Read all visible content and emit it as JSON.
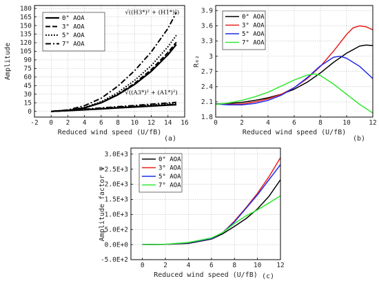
{
  "chart_data": [
    {
      "type": "line",
      "tag": "(a)",
      "xlabel": "Reduced wind speed (U/fB)",
      "ylabel": "Amplitude",
      "xlim": [
        -2,
        16
      ],
      "ylim": [
        -10,
        185
      ],
      "xticks": [
        -2,
        0,
        2,
        4,
        6,
        8,
        10,
        12,
        14,
        16
      ],
      "yticks": [
        0,
        15,
        30,
        45,
        60,
        75,
        90,
        105,
        120,
        135,
        150,
        165,
        180
      ],
      "grid": true,
      "legend_position": "top-left",
      "annotations": [
        {
          "text": "√((H3*)² + (H1*)²)",
          "at_data": [
            12.1,
            170
          ]
        },
        {
          "text": "√((A3*)² + (A1*)²)",
          "at_data": [
            12.0,
            30
          ]
        }
      ],
      "series": [
        {
          "name": "0° AOA",
          "style": "solid",
          "width": 2.2,
          "x": [
            0,
            2,
            4,
            6,
            8,
            10,
            12,
            14,
            15
          ],
          "y": [
            0,
            1.5,
            6,
            15,
            29,
            47,
            70,
            99,
            117
          ]
        },
        {
          "name": "3° AOA",
          "style": "dashed",
          "width": 2,
          "x": [
            0,
            2,
            4,
            6,
            8,
            10,
            12,
            14,
            15
          ],
          "y": [
            0,
            1.6,
            6.4,
            15.5,
            30,
            49,
            73,
            103,
            121
          ]
        },
        {
          "name": "5° AOA",
          "style": "dotted",
          "width": 2,
          "x": [
            0,
            2,
            4,
            6,
            8,
            10,
            12,
            14,
            15
          ],
          "y": [
            0,
            1.7,
            7,
            17,
            33,
            54,
            80,
            113,
            133
          ]
        },
        {
          "name": "7° AOA",
          "style": "dashdot",
          "width": 2,
          "x": [
            0,
            2,
            4,
            6,
            8,
            10,
            12,
            14,
            15
          ],
          "y": [
            0,
            2.5,
            10,
            23,
            44,
            71,
            104,
            145,
            173
          ]
        },
        {
          "name": "",
          "style": "solid",
          "width": 2.2,
          "x": [
            0,
            2,
            4,
            6,
            8,
            10,
            12,
            14,
            15
          ],
          "y": [
            0,
            1.3,
            2.8,
            4.3,
            6,
            7.6,
            9.2,
            10.8,
            11.5
          ]
        },
        {
          "name": "",
          "style": "dashed",
          "width": 2,
          "x": [
            0,
            2,
            4,
            6,
            8,
            10,
            12,
            14,
            15
          ],
          "y": [
            0,
            1.4,
            3,
            4.6,
            6.3,
            8,
            9.8,
            11.5,
            12.3
          ]
        },
        {
          "name": "",
          "style": "dotted",
          "width": 2,
          "x": [
            0,
            2,
            4,
            6,
            8,
            10,
            12,
            14,
            15
          ],
          "y": [
            0,
            1.6,
            3.5,
            5.4,
            7.4,
            9.4,
            11.4,
            13.2,
            14.2
          ]
        },
        {
          "name": "",
          "style": "dashdot",
          "width": 2,
          "x": [
            0,
            2,
            4,
            6,
            8,
            10,
            12,
            14,
            15
          ],
          "y": [
            0,
            1.7,
            3.8,
            6,
            8.2,
            10.4,
            12.6,
            14.7,
            15.7
          ]
        }
      ]
    },
    {
      "type": "line",
      "tag": "(b)",
      "xlabel": "Reduced wind speed (U/fB)",
      "ylabel": "R₀₂",
      "xlim": [
        0,
        12
      ],
      "ylim": [
        1.8,
        4.0
      ],
      "xticks": [
        0,
        2,
        4,
        6,
        8,
        10,
        12
      ],
      "yticks": [
        1.8,
        2.1,
        2.4,
        2.7,
        3.0,
        3.3,
        3.6,
        3.9
      ],
      "grid": true,
      "legend_position": "top-left",
      "series": [
        {
          "name": "0° AOA",
          "color": "#000000",
          "x": [
            0,
            1,
            2,
            3,
            4,
            5,
            6,
            7,
            8,
            9,
            10,
            11,
            11.5,
            12
          ],
          "y": [
            2.06,
            2.07,
            2.09,
            2.13,
            2.18,
            2.25,
            2.35,
            2.49,
            2.67,
            2.88,
            3.06,
            3.2,
            3.22,
            3.21
          ]
        },
        {
          "name": "3° AOA",
          "color": "#e81e1e",
          "x": [
            0,
            1,
            2,
            3,
            4,
            5,
            6,
            7,
            8,
            9,
            10,
            10.5,
            11,
            11.5,
            12
          ],
          "y": [
            2.06,
            2.05,
            2.06,
            2.1,
            2.16,
            2.25,
            2.38,
            2.56,
            2.8,
            3.1,
            3.43,
            3.56,
            3.6,
            3.58,
            3.52
          ]
        },
        {
          "name": "5° AOA",
          "color": "#1f2ae8",
          "x": [
            0,
            1,
            2,
            3,
            4,
            5,
            6,
            7,
            8,
            9,
            9.5,
            10,
            11,
            12
          ],
          "y": [
            2.06,
            2.04,
            2.04,
            2.07,
            2.13,
            2.23,
            2.38,
            2.58,
            2.81,
            2.98,
            3.0,
            2.96,
            2.8,
            2.56
          ]
        },
        {
          "name": "7° AOA",
          "color": "#2fe82f",
          "x": [
            0,
            1,
            2,
            3,
            4,
            5,
            6,
            7,
            7.6,
            8,
            9,
            10,
            11,
            12
          ],
          "y": [
            2.05,
            2.08,
            2.13,
            2.2,
            2.29,
            2.41,
            2.53,
            2.63,
            2.65,
            2.62,
            2.45,
            2.25,
            2.05,
            1.88
          ]
        }
      ]
    },
    {
      "type": "line",
      "tag": "(c)",
      "xlabel": "Reduced wind speed (U/fB)",
      "ylabel": "Amplitude factor Ψ",
      "xlim": [
        -1,
        12
      ],
      "ylim": [
        -5,
        32
      ],
      "xticks": [
        0,
        2,
        4,
        6,
        8,
        10,
        12
      ],
      "yticks": [
        -5,
        0,
        5,
        10,
        15,
        20,
        25,
        30
      ],
      "ytick_labels": [
        "-5.0E+2",
        "0.0E+0",
        "5.0E+2",
        "1.0E+3",
        "1.5E+3",
        "2.0E+3",
        "2.5E+3",
        "3.0E+3"
      ],
      "grid": true,
      "legend_position": "top-left",
      "series": [
        {
          "name": "0° AOA",
          "color": "#000000",
          "x": [
            0,
            2,
            4,
            6,
            7,
            8,
            9,
            10,
            11,
            12
          ],
          "y": [
            0,
            0.05,
            0.4,
            1.8,
            3.6,
            6,
            8.6,
            11.8,
            16,
            21.5
          ]
        },
        {
          "name": "3° AOA",
          "color": "#e81e1e",
          "x": [
            0,
            2,
            4,
            6,
            7,
            8,
            9,
            10,
            11,
            12
          ],
          "y": [
            0,
            0.1,
            0.6,
            2,
            4,
            7.8,
            12.2,
            17,
            22.5,
            28.8
          ]
        },
        {
          "name": "5° AOA",
          "color": "#1f2ae8",
          "x": [
            0,
            2,
            4,
            6,
            7,
            8,
            9,
            10,
            11,
            12
          ],
          "y": [
            0,
            0.1,
            0.6,
            2,
            4,
            7.5,
            12,
            16.5,
            21.5,
            26.5
          ]
        },
        {
          "name": "7° AOA",
          "color": "#2fe82f",
          "x": [
            0,
            2,
            4,
            6,
            7,
            8,
            9,
            10,
            11,
            12
          ],
          "y": [
            0,
            0.1,
            0.7,
            2.2,
            4,
            7,
            9.5,
            11.5,
            13.8,
            16.2
          ]
        }
      ]
    }
  ]
}
